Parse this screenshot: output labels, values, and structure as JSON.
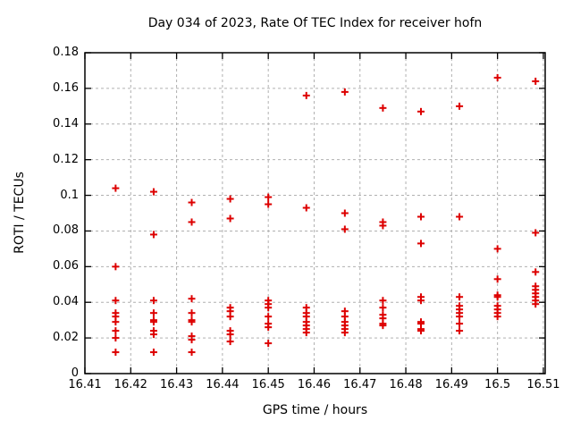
{
  "chart_data": {
    "type": "scatter",
    "title": "Day 034 of 2023, Rate Of TEC Index for receiver hofn",
    "xlabel": "GPS time / hours",
    "ylabel": "ROTI / TECUs",
    "xlim": [
      16.41,
      16.5104
    ],
    "ylim": [
      0,
      0.18
    ],
    "xtick_values": [
      16.41,
      16.42,
      16.43,
      16.44,
      16.45,
      16.46,
      16.47,
      16.48,
      16.49,
      16.5,
      16.51
    ],
    "xtick_labels": [
      "16.41",
      "16.42",
      "16.43",
      "16.44",
      "16.45",
      "16.46",
      "16.47",
      "16.48",
      "16.49",
      "16.5",
      "16.51"
    ],
    "ytick_values": [
      0,
      0.02,
      0.04,
      0.06,
      0.08,
      0.1,
      0.12,
      0.14,
      0.16,
      0.18
    ],
    "ytick_labels": [
      "0",
      "0.02",
      "0.04",
      "0.06",
      "0.08",
      "0.1",
      "0.12",
      "0.14",
      "0.16",
      "0.18"
    ],
    "grid": "dashed",
    "legend": "none",
    "marker": {
      "shape": "plus",
      "color": "#dd0000"
    },
    "colors": {
      "frame": "#000000",
      "grid": "#b0b0b0",
      "text": "#000000",
      "background": "#ffffff"
    },
    "series": [
      {
        "name": "ROTI",
        "clusters": [
          {
            "x": 16.4167,
            "y": [
              0.104,
              0.06,
              0.041,
              0.034,
              0.032,
              0.029,
              0.024,
              0.02,
              0.012
            ]
          },
          {
            "x": 16.425,
            "y": [
              0.102,
              0.078,
              0.041,
              0.034,
              0.03,
              0.029,
              0.024,
              0.022,
              0.012
            ]
          },
          {
            "x": 16.4333,
            "y": [
              0.096,
              0.085,
              0.042,
              0.034,
              0.03,
              0.029,
              0.021,
              0.019,
              0.012
            ]
          },
          {
            "x": 16.4417,
            "y": [
              0.098,
              0.087,
              0.037,
              0.035,
              0.032,
              0.024,
              0.022,
              0.018
            ]
          },
          {
            "x": 16.45,
            "y": [
              0.099,
              0.095,
              0.041,
              0.039,
              0.037,
              0.032,
              0.028,
              0.026,
              0.017
            ]
          },
          {
            "x": 16.4583,
            "y": [
              0.156,
              0.093,
              0.037,
              0.034,
              0.032,
              0.029,
              0.027,
              0.025,
              0.023
            ]
          },
          {
            "x": 16.4667,
            "y": [
              0.158,
              0.09,
              0.081,
              0.035,
              0.032,
              0.029,
              0.027,
              0.025,
              0.023
            ]
          },
          {
            "x": 16.475,
            "y": [
              0.149,
              0.085,
              0.083,
              0.041,
              0.037,
              0.033,
              0.031,
              0.028,
              0.027
            ]
          },
          {
            "x": 16.4833,
            "y": [
              0.147,
              0.088,
              0.073,
              0.043,
              0.041,
              0.029,
              0.028,
              0.025,
              0.024
            ]
          },
          {
            "x": 16.4917,
            "y": [
              0.15,
              0.088,
              0.043,
              0.038,
              0.036,
              0.034,
              0.032,
              0.028,
              0.024
            ]
          },
          {
            "x": 16.5,
            "y": [
              0.166,
              0.07,
              0.053,
              0.044,
              0.043,
              0.038,
              0.036,
              0.034,
              0.032
            ]
          },
          {
            "x": 16.5083,
            "y": [
              0.164,
              0.079,
              0.057,
              0.049,
              0.047,
              0.045,
              0.043,
              0.041,
              0.039
            ]
          }
        ]
      }
    ]
  }
}
